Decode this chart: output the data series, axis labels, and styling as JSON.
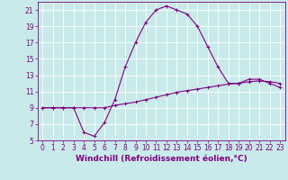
{
  "xlabel": "Windchill (Refroidissement éolien,°C)",
  "bg_color": "#c8eaea",
  "line_color": "#800080",
  "grid_color": "#ffffff",
  "x_hours": [
    0,
    1,
    2,
    3,
    4,
    5,
    6,
    7,
    8,
    9,
    10,
    11,
    12,
    13,
    14,
    15,
    16,
    17,
    18,
    19,
    20,
    21,
    22,
    23
  ],
  "y_windchill": [
    9,
    9,
    9,
    9,
    6,
    5.5,
    7.2,
    10,
    14,
    17,
    19.5,
    21,
    21.5,
    21,
    20.5,
    19,
    16.5,
    14,
    12,
    12,
    12.5,
    12.5,
    12,
    11.5
  ],
  "y_temp": [
    9,
    9,
    9,
    9,
    9,
    9,
    9,
    9.3,
    9.5,
    9.7,
    10,
    10.3,
    10.6,
    10.9,
    11.1,
    11.3,
    11.5,
    11.7,
    11.9,
    12.0,
    12.2,
    12.3,
    12.2,
    12.0
  ],
  "xlim": [
    -0.5,
    23.5
  ],
  "ylim": [
    5,
    22
  ],
  "xticks": [
    0,
    1,
    2,
    3,
    4,
    5,
    6,
    7,
    8,
    9,
    10,
    11,
    12,
    13,
    14,
    15,
    16,
    17,
    18,
    19,
    20,
    21,
    22,
    23
  ],
  "yticks": [
    5,
    7,
    9,
    11,
    13,
    15,
    17,
    19,
    21
  ],
  "tick_fontsize": 5.5,
  "xlabel_fontsize": 6.5,
  "marker": "+",
  "markersize": 3,
  "linewidth": 0.8
}
